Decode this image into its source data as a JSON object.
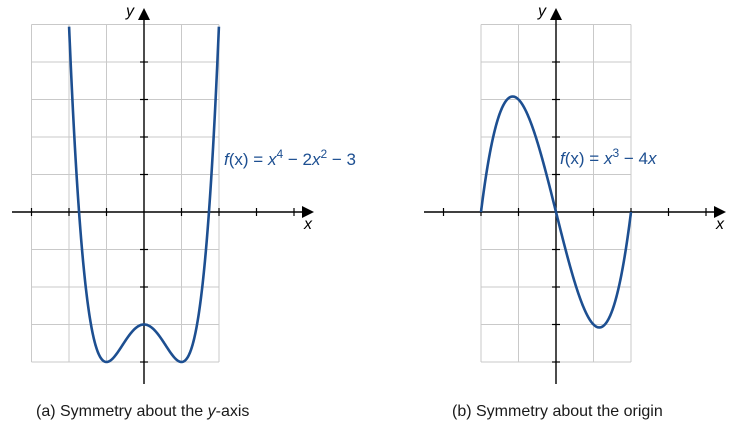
{
  "chart_data": [
    {
      "type": "line",
      "function": "x^4 - 2x^2 - 3",
      "equation": {
        "lhs_f": "f",
        "lhs_x": "(x)",
        "eq": " = ",
        "t1_base": "x",
        "t1_exp": "4",
        "op1": " − 2",
        "t2_base": "x",
        "t2_exp": "2",
        "op2": " − 3"
      },
      "xlabel": "x",
      "ylabel": "y",
      "xlim": [
        -3,
        4
      ],
      "ylim": [
        -4.5,
        5
      ],
      "grid": true,
      "caption_pre": "(a) Symmetry about the ",
      "caption_it": "y",
      "caption_post": "-axis",
      "x_domain": [
        -2.07,
        2.07
      ],
      "key_points": [
        {
          "x": -1,
          "y": -4
        },
        {
          "x": 0,
          "y": -3
        },
        {
          "x": 1,
          "y": -4
        }
      ]
    },
    {
      "type": "line",
      "function": "x^3 - 4x",
      "equation": {
        "lhs_f": "f",
        "lhs_x": "(x)",
        "eq": " = ",
        "t1_base": "x",
        "t1_exp": "3",
        "op1": " − 4",
        "t2_base": "x",
        "t2_exp": "",
        "op2": ""
      },
      "xlabel": "x",
      "ylabel": "y",
      "xlim": [
        -3.6,
        4.5
      ],
      "ylim": [
        -4.5,
        5.3
      ],
      "grid": true,
      "caption_pre": "(b) Symmetry about the origin",
      "caption_it": "",
      "caption_post": "",
      "x_domain": [
        -2,
        2
      ],
      "key_points": [
        {
          "x": -2,
          "y": 0
        },
        {
          "x": -1.155,
          "y": 3.08
        },
        {
          "x": 0,
          "y": 0
        },
        {
          "x": 1.155,
          "y": -3.08
        },
        {
          "x": 2,
          "y": 0
        }
      ]
    }
  ],
  "colors": {
    "curve": "#1d4f91",
    "grid": "#c9c9c9",
    "axis": "#000000"
  }
}
